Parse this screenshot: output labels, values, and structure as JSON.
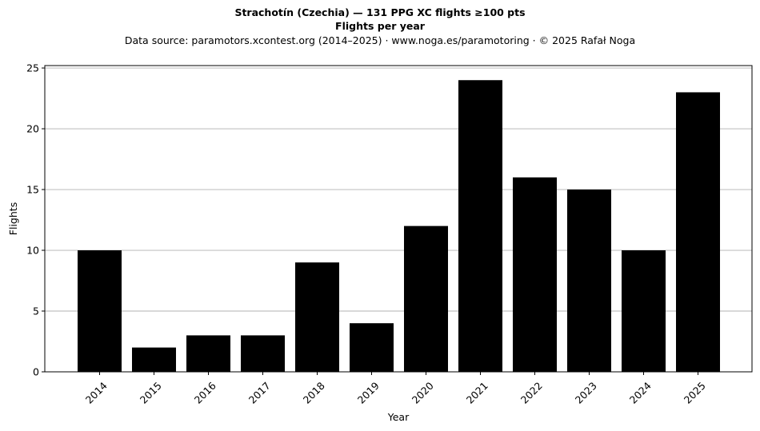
{
  "chart_data": {
    "type": "bar",
    "title": "Strachotín (Czechia)  —  131 PPG XC flights ≥100 pts",
    "subtitle": "Flights per year",
    "source_note": "Data source: paramotors.xcontest.org (2014–2025)  ·  www.noga.es/paramotoring  ·  © 2025 Rafał Noga",
    "xlabel": "Year",
    "ylabel": "Flights",
    "categories": [
      "2014",
      "2015",
      "2016",
      "2017",
      "2018",
      "2019",
      "2020",
      "2021",
      "2022",
      "2023",
      "2024",
      "2025"
    ],
    "values": [
      10,
      2,
      3,
      3,
      9,
      4,
      12,
      24,
      16,
      15,
      10,
      23
    ],
    "ylim": [
      0,
      25.2
    ],
    "yticks": [
      0,
      5,
      10,
      15,
      20,
      25
    ],
    "grid": "horizontal",
    "bar_color": "#000000",
    "grid_color": "#b0b0b0"
  }
}
